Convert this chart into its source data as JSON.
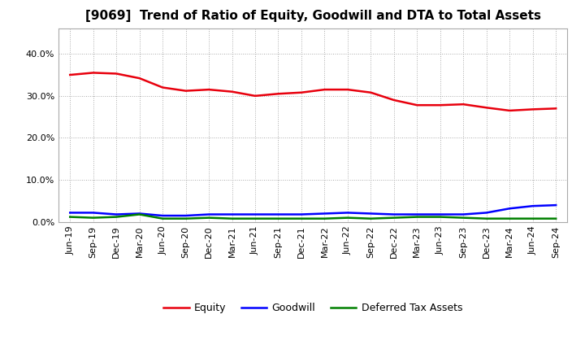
{
  "title": "[9069]  Trend of Ratio of Equity, Goodwill and DTA to Total Assets",
  "x_labels": [
    "Jun-19",
    "Sep-19",
    "Dec-19",
    "Mar-20",
    "Jun-20",
    "Sep-20",
    "Dec-20",
    "Mar-21",
    "Jun-21",
    "Sep-21",
    "Dec-21",
    "Mar-22",
    "Jun-22",
    "Sep-22",
    "Dec-22",
    "Mar-23",
    "Jun-23",
    "Sep-23",
    "Dec-23",
    "Mar-24",
    "Jun-24",
    "Sep-24"
  ],
  "equity": [
    35.0,
    35.5,
    35.3,
    34.2,
    32.0,
    31.2,
    31.5,
    31.0,
    30.0,
    30.5,
    30.8,
    31.5,
    31.5,
    30.8,
    29.0,
    27.8,
    27.8,
    28.0,
    27.2,
    26.5,
    26.8,
    27.0
  ],
  "goodwill": [
    2.2,
    2.2,
    1.8,
    2.0,
    1.5,
    1.5,
    1.8,
    1.8,
    1.8,
    1.8,
    1.8,
    2.0,
    2.2,
    2.0,
    1.8,
    1.8,
    1.8,
    1.8,
    2.2,
    3.2,
    3.8,
    4.0
  ],
  "dta": [
    1.2,
    1.0,
    1.2,
    1.8,
    0.8,
    0.8,
    1.0,
    0.8,
    0.8,
    0.8,
    0.8,
    0.8,
    1.0,
    0.8,
    1.0,
    1.2,
    1.2,
    1.0,
    0.8,
    0.8,
    0.8,
    0.8
  ],
  "equity_color": "#e8000d",
  "goodwill_color": "#0000ff",
  "dta_color": "#008000",
  "ylim": [
    0,
    46
  ],
  "yticks": [
    0,
    10,
    20,
    30,
    40
  ],
  "background_color": "#ffffff",
  "plot_bg_color": "#ffffff",
  "grid_color": "#aaaaaa",
  "legend_labels": [
    "Equity",
    "Goodwill",
    "Deferred Tax Assets"
  ]
}
